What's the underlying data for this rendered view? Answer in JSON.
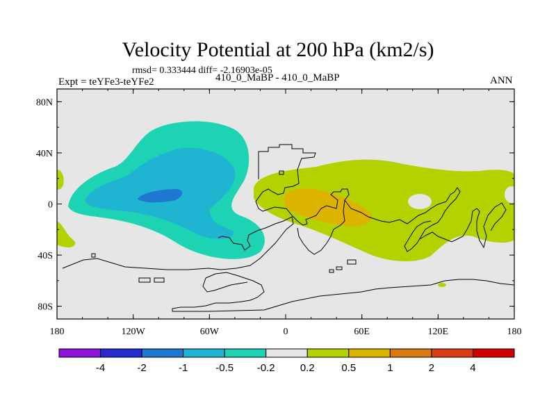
{
  "chart_data": {
    "type": "contour-map",
    "title": "Velocity Potential at 200 hPa (km2/s)",
    "stats": "rmsd= 0.333444 diff= -2.16903e-05",
    "left_label": "Expt = teYFe3-teYFe2",
    "center_label": "410_0_MaBP - 410_0_MaBP",
    "right_label": "ANN",
    "x_ticks": [
      "180",
      "120W",
      "60W",
      "0",
      "60E",
      "120E",
      "180"
    ],
    "x_tick_values": [
      -180,
      -120,
      -60,
      0,
      60,
      120,
      180
    ],
    "y_ticks": [
      "80N",
      "40N",
      "0",
      "40S",
      "80S"
    ],
    "y_tick_values": [
      80,
      40,
      0,
      -40,
      -80
    ],
    "xlim": [
      -180,
      180
    ],
    "ylim": [
      -90,
      90
    ],
    "colorbar": {
      "boundary_labels": [
        "-4",
        "-2",
        "-1",
        "-0.5",
        "-0.2",
        "0.2",
        "0.5",
        "1",
        "2",
        "4"
      ],
      "colors": [
        "#8c14dc",
        "#2828d2",
        "#1e78d2",
        "#1eb4d2",
        "#1ed2b4",
        "#e6e6e6",
        "#b4d200",
        "#dcb400",
        "#dc7814",
        "#dc3c14",
        "#d20000"
      ]
    },
    "regions": [
      {
        "name": "western-hemisphere-negative-outer",
        "level": "-0.5 to -0.2",
        "color": "#1ed2b4"
      },
      {
        "name": "western-hemisphere-negative-inner",
        "level": "-1 to -0.5",
        "color": "#1eb4d2"
      },
      {
        "name": "western-hemisphere-negative-core",
        "level": "-2 to -1",
        "color": "#1e78d2"
      },
      {
        "name": "dateline-positive-strip",
        "level": "0.2 to 0.5",
        "color": "#b4d200"
      },
      {
        "name": "eastern-hemisphere-positive-outer",
        "level": "0.2 to 0.5",
        "color": "#b4d200"
      },
      {
        "name": "eastern-hemisphere-positive-core",
        "level": "0.5 to 1",
        "color": "#dcb400"
      }
    ]
  }
}
